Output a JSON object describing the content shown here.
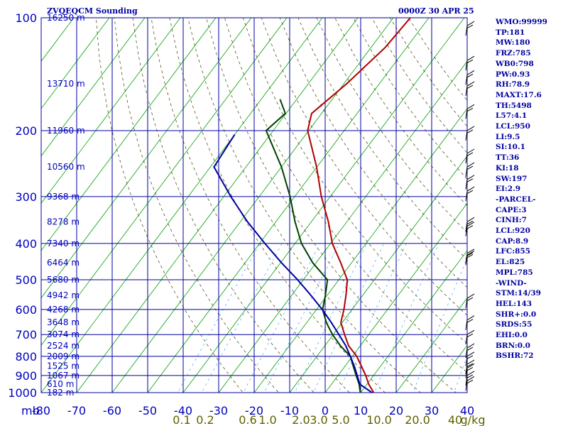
{
  "header": {
    "title": "ZVQEQCM Sounding",
    "valid_time": "0000Z 30 APR 25"
  },
  "chart_data": {
    "type": "line",
    "title": "ZVQEQCM Sounding",
    "x_axis": {
      "unit_label": "mb",
      "temperature_ticks": [
        -80,
        -70,
        -60,
        -50,
        -40,
        -30,
        -20,
        -10,
        0,
        10,
        20,
        30,
        40
      ],
      "temperature_labels": [
        "-80",
        "-70",
        "-60",
        "-50",
        "-40",
        "-30",
        "-20",
        "-10",
        "0",
        "10",
        "20",
        "30",
        "40"
      ],
      "mixing_ratio_labels": [
        "0.1",
        "0.2",
        "0.6",
        "1.0",
        "2.0",
        "3.0",
        "5.0",
        "10.0",
        "20.0",
        "40",
        "g/kg"
      ],
      "range": [
        -80,
        40
      ]
    },
    "y_axis": {
      "pressure_ticks": [
        100,
        200,
        300,
        400,
        500,
        600,
        700,
        800,
        900,
        1000
      ],
      "pressure_labels": [
        "100",
        "200",
        "300",
        "400",
        "500",
        "600",
        "700",
        "800",
        "900",
        "1000"
      ],
      "height_labels": [
        "16250 m",
        "13710 m",
        "11960 m",
        "10560 m",
        "9368 m",
        "8278 m",
        "7340 m",
        "6464 m",
        "5680 m",
        "4942 m",
        "4268 m",
        "3648 m",
        "3074 m",
        "2524 m",
        "2009 m",
        "1525 m",
        "1067 m",
        "610 m",
        "182 m"
      ],
      "height_pressures": [
        100,
        150,
        200,
        250,
        300,
        350,
        400,
        450,
        500,
        550,
        600,
        650,
        700,
        750,
        800,
        850,
        900,
        950,
        1000
      ],
      "scale": "log-pressure",
      "range": [
        100,
        1000
      ]
    },
    "series": [
      {
        "kind": "temperature",
        "color": "#b00000",
        "points": [
          {
            "p": 1010,
            "t": 14.3
          },
          {
            "p": 950,
            "t": 10.5
          },
          {
            "p": 900,
            "t": 7.8
          },
          {
            "p": 850,
            "t": 4.6
          },
          {
            "p": 800,
            "t": 1.2
          },
          {
            "p": 750,
            "t": -3.3
          },
          {
            "p": 700,
            "t": -6.8
          },
          {
            "p": 650,
            "t": -10.4
          },
          {
            "p": 600,
            "t": -12.3
          },
          {
            "p": 550,
            "t": -14.7
          },
          {
            "p": 500,
            "t": -17.6
          },
          {
            "p": 450,
            "t": -23.1
          },
          {
            "p": 400,
            "t": -29.5
          },
          {
            "p": 350,
            "t": -35.2
          },
          {
            "p": 300,
            "t": -42.5
          },
          {
            "p": 250,
            "t": -50.1
          },
          {
            "p": 200,
            "t": -60.3
          },
          {
            "p": 180,
            "t": -62.8
          },
          {
            "p": 150,
            "t": -59.2
          },
          {
            "p": 120,
            "t": -56.0
          },
          {
            "p": 100,
            "t": -55.2
          }
        ]
      },
      {
        "kind": "dewpoint",
        "color": "#004000",
        "points": [
          {
            "p": 1010,
            "t": 10.3
          },
          {
            "p": 950,
            "t": 7.8
          },
          {
            "p": 900,
            "t": 5.1
          },
          {
            "p": 850,
            "t": 2.3
          },
          {
            "p": 800,
            "t": -0.6
          },
          {
            "p": 750,
            "t": -5.6
          },
          {
            "p": 700,
            "t": -10.2
          },
          {
            "p": 650,
            "t": -14.5
          },
          {
            "p": 600,
            "t": -18.3
          },
          {
            "p": 550,
            "t": -20.5
          },
          {
            "p": 500,
            "t": -23.2
          },
          {
            "p": 450,
            "t": -31.0
          },
          {
            "p": 400,
            "t": -38.2
          },
          {
            "p": 350,
            "t": -44.6
          },
          {
            "p": 300,
            "t": -51.3
          },
          {
            "p": 250,
            "t": -60.0
          },
          {
            "p": 200,
            "t": -72.0
          },
          {
            "p": 180,
            "t": -70.2
          },
          {
            "p": 165,
            "t": -74.7
          }
        ]
      },
      {
        "kind": "parcel",
        "color": "#0000a0",
        "points": [
          {
            "p": 1010,
            "t": 14.2
          },
          {
            "p": 950,
            "t": 8.0
          },
          {
            "p": 900,
            "t": 5.4
          },
          {
            "p": 850,
            "t": 2.6
          },
          {
            "p": 800,
            "t": -0.6
          },
          {
            "p": 750,
            "t": -4.1
          },
          {
            "p": 700,
            "t": -8.4
          },
          {
            "p": 650,
            "t": -13.1
          },
          {
            "p": 600,
            "t": -18.4
          },
          {
            "p": 550,
            "t": -24.6
          },
          {
            "p": 500,
            "t": -31.6
          },
          {
            "p": 450,
            "t": -39.8
          },
          {
            "p": 400,
            "t": -48.5
          },
          {
            "p": 350,
            "t": -58.0
          },
          {
            "p": 300,
            "t": -68.0
          },
          {
            "p": 250,
            "t": -79.0
          },
          {
            "p": 205,
            "t": -80.0
          }
        ]
      }
    ],
    "grid": true,
    "wind_barb_pressures": [
      105,
      130,
      142,
      152,
      175,
      200,
      230,
      250,
      270,
      290,
      350,
      360,
      425,
      430,
      560,
      640,
      700,
      760,
      800,
      840,
      860,
      900,
      930
    ]
  },
  "indices": [
    "WMO:99999",
    "TP:181",
    "MW:180",
    "FRZ:785",
    "WB0:798",
    "PW:0.93",
    "RH:78.9",
    "MAXT:17.6",
    "TH:5498",
    "L57:4.1",
    "LCL:950",
    "LI:9.5",
    "SI:10.1",
    "TT:36",
    "KI:18",
    "SW:197",
    "EI:2.9",
    "-PARCEL-",
    "CAPE:3",
    "CINH:7",
    "LCL:920",
    "CAP:8.9",
    "LFC:855",
    "EL:825",
    "MPL:785",
    "-WIND-",
    "STM:14/39",
    "HEL:143",
    "SHR+:0.0",
    "SRDS:55",
    "EHI:0.0",
    "BRN:0.0",
    "BSHR:72"
  ],
  "colors": {
    "grid": "#0000a0",
    "isotherm": "#00a000",
    "dry_adiabat": "#404000",
    "mixing_ratio": "#40a0ff",
    "temperature": "#b00000",
    "dewpoint": "#004000",
    "parcel": "#0000a0",
    "axis_text_blue": "#0000c0",
    "axis_text_olive": "#606000"
  }
}
